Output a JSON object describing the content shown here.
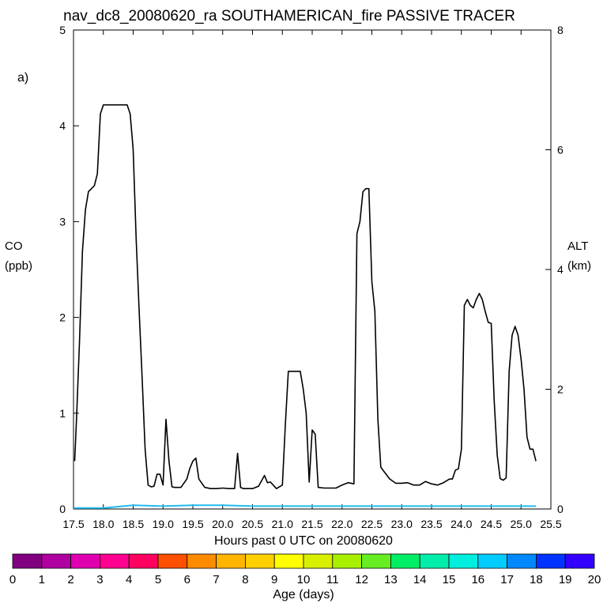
{
  "chart_data": {
    "type": "line",
    "title": "nav_dc8_20080620_ra SOUTHAMERICAN_fire PASSIVE TRACER",
    "panel_label": "a)",
    "xlabel": "Hours past 0 UTC on 20080620",
    "ylabel": "CO",
    "ylabel_units": "(ppb)",
    "y2label": "ALT",
    "y2label_units": "(km)",
    "xlim": [
      17.5,
      25.5
    ],
    "ylim": [
      0,
      5
    ],
    "y2lim": [
      0,
      8
    ],
    "x_ticks": [
      "17.5",
      "18.0",
      "18.5",
      "19.0",
      "19.5",
      "20.0",
      "20.5",
      "21.0",
      "21.5",
      "22.0",
      "22.5",
      "23.0",
      "23.5",
      "24.0",
      "24.5",
      "25.0",
      "25.5"
    ],
    "y_ticks": [
      "0",
      "1",
      "2",
      "3",
      "4",
      "5"
    ],
    "y2_ticks": [
      "0",
      "2",
      "4",
      "6",
      "8"
    ],
    "grid": false,
    "series": [
      {
        "axis": "y2",
        "color": "#000000",
        "x": [
          17.52,
          17.55,
          17.6,
          17.65,
          17.7,
          17.75,
          17.8,
          17.85,
          17.9,
          17.95,
          18.0,
          18.05,
          18.1,
          18.2,
          18.3,
          18.4,
          18.45,
          18.5,
          18.55,
          18.6,
          18.65,
          18.7,
          18.75,
          18.8,
          18.85,
          18.9,
          18.95,
          19.0,
          19.05,
          19.1,
          19.15,
          19.2,
          19.3,
          19.4,
          19.45,
          19.5,
          19.55,
          19.6,
          19.7,
          19.8,
          19.9,
          20.0,
          20.1,
          20.2,
          20.25,
          20.3,
          20.35,
          20.4,
          20.5,
          20.6,
          20.7,
          20.75,
          20.8,
          20.9,
          21.0,
          21.05,
          21.1,
          21.2,
          21.3,
          21.35,
          21.4,
          21.45,
          21.5,
          21.55,
          21.6,
          21.7,
          21.8,
          21.9,
          22.0,
          22.1,
          22.2,
          22.25,
          22.3,
          22.35,
          22.4,
          22.45,
          22.5,
          22.55,
          22.6,
          22.65,
          22.7,
          22.8,
          22.9,
          23.0,
          23.1,
          23.2,
          23.3,
          23.4,
          23.5,
          23.6,
          23.7,
          23.8,
          23.85,
          23.9,
          23.95,
          24.0,
          24.05,
          24.1,
          24.15,
          24.2,
          24.25,
          24.3,
          24.35,
          24.4,
          24.45,
          24.5,
          24.55,
          24.6,
          24.65,
          24.7,
          24.75,
          24.8,
          24.85,
          24.9,
          24.95,
          25.0,
          25.05,
          25.1,
          25.15,
          25.2,
          25.25
        ],
        "y": [
          0.8,
          1.5,
          2.8,
          4.3,
          5.0,
          5.3,
          5.35,
          5.4,
          5.6,
          6.6,
          6.75,
          6.75,
          6.75,
          6.75,
          6.75,
          6.75,
          6.6,
          6.0,
          4.5,
          3.3,
          2.2,
          1.0,
          0.4,
          0.37,
          0.38,
          0.58,
          0.58,
          0.4,
          1.5,
          0.8,
          0.37,
          0.36,
          0.36,
          0.5,
          0.68,
          0.8,
          0.85,
          0.5,
          0.36,
          0.34,
          0.34,
          0.35,
          0.34,
          0.34,
          0.93,
          0.36,
          0.34,
          0.34,
          0.34,
          0.38,
          0.56,
          0.44,
          0.45,
          0.34,
          0.4,
          1.4,
          2.3,
          2.3,
          2.3,
          2.0,
          1.6,
          0.45,
          1.32,
          1.25,
          0.36,
          0.35,
          0.35,
          0.35,
          0.4,
          0.44,
          0.42,
          4.6,
          4.8,
          5.3,
          5.35,
          5.35,
          3.8,
          3.3,
          1.5,
          0.7,
          0.63,
          0.5,
          0.43,
          0.43,
          0.44,
          0.4,
          0.4,
          0.46,
          0.42,
          0.4,
          0.44,
          0.5,
          0.5,
          0.65,
          0.67,
          1.0,
          3.4,
          3.5,
          3.4,
          3.36,
          3.5,
          3.6,
          3.5,
          3.3,
          3.12,
          3.1,
          1.8,
          0.9,
          0.51,
          0.48,
          0.52,
          2.3,
          2.9,
          3.05,
          2.9,
          2.5,
          2.0,
          1.2,
          1.0,
          1.0,
          0.8
        ]
      },
      {
        "axis": "y",
        "color": "#22bbee",
        "x": [
          17.5,
          18.0,
          18.5,
          19.0,
          19.5,
          20.0,
          20.5,
          21.0,
          21.5,
          22.0,
          22.5,
          23.0,
          23.5,
          24.0,
          24.5,
          25.0,
          25.25
        ],
        "y": [
          0.01,
          0.01,
          0.04,
          0.03,
          0.04,
          0.04,
          0.03,
          0.03,
          0.03,
          0.03,
          0.03,
          0.03,
          0.03,
          0.03,
          0.03,
          0.03,
          0.03
        ]
      }
    ],
    "colorbar": {
      "label": "Age (days)",
      "ticks": [
        "0",
        "1",
        "2",
        "3",
        "4",
        "5",
        "6",
        "7",
        "8",
        "9",
        "10",
        "11",
        "12",
        "13",
        "14",
        "15",
        "16",
        "17",
        "18",
        "19",
        "20"
      ],
      "colors": [
        "#800080",
        "#b000a0",
        "#e000b0",
        "#ff0090",
        "#ff0060",
        "#ff5000",
        "#ff8c00",
        "#ffb400",
        "#ffd000",
        "#ffff00",
        "#d8f000",
        "#a8f000",
        "#66ee22",
        "#00ee66",
        "#00eeaa",
        "#00eedd",
        "#00ccff",
        "#0088ff",
        "#0033ff",
        "#3300ff"
      ]
    }
  }
}
